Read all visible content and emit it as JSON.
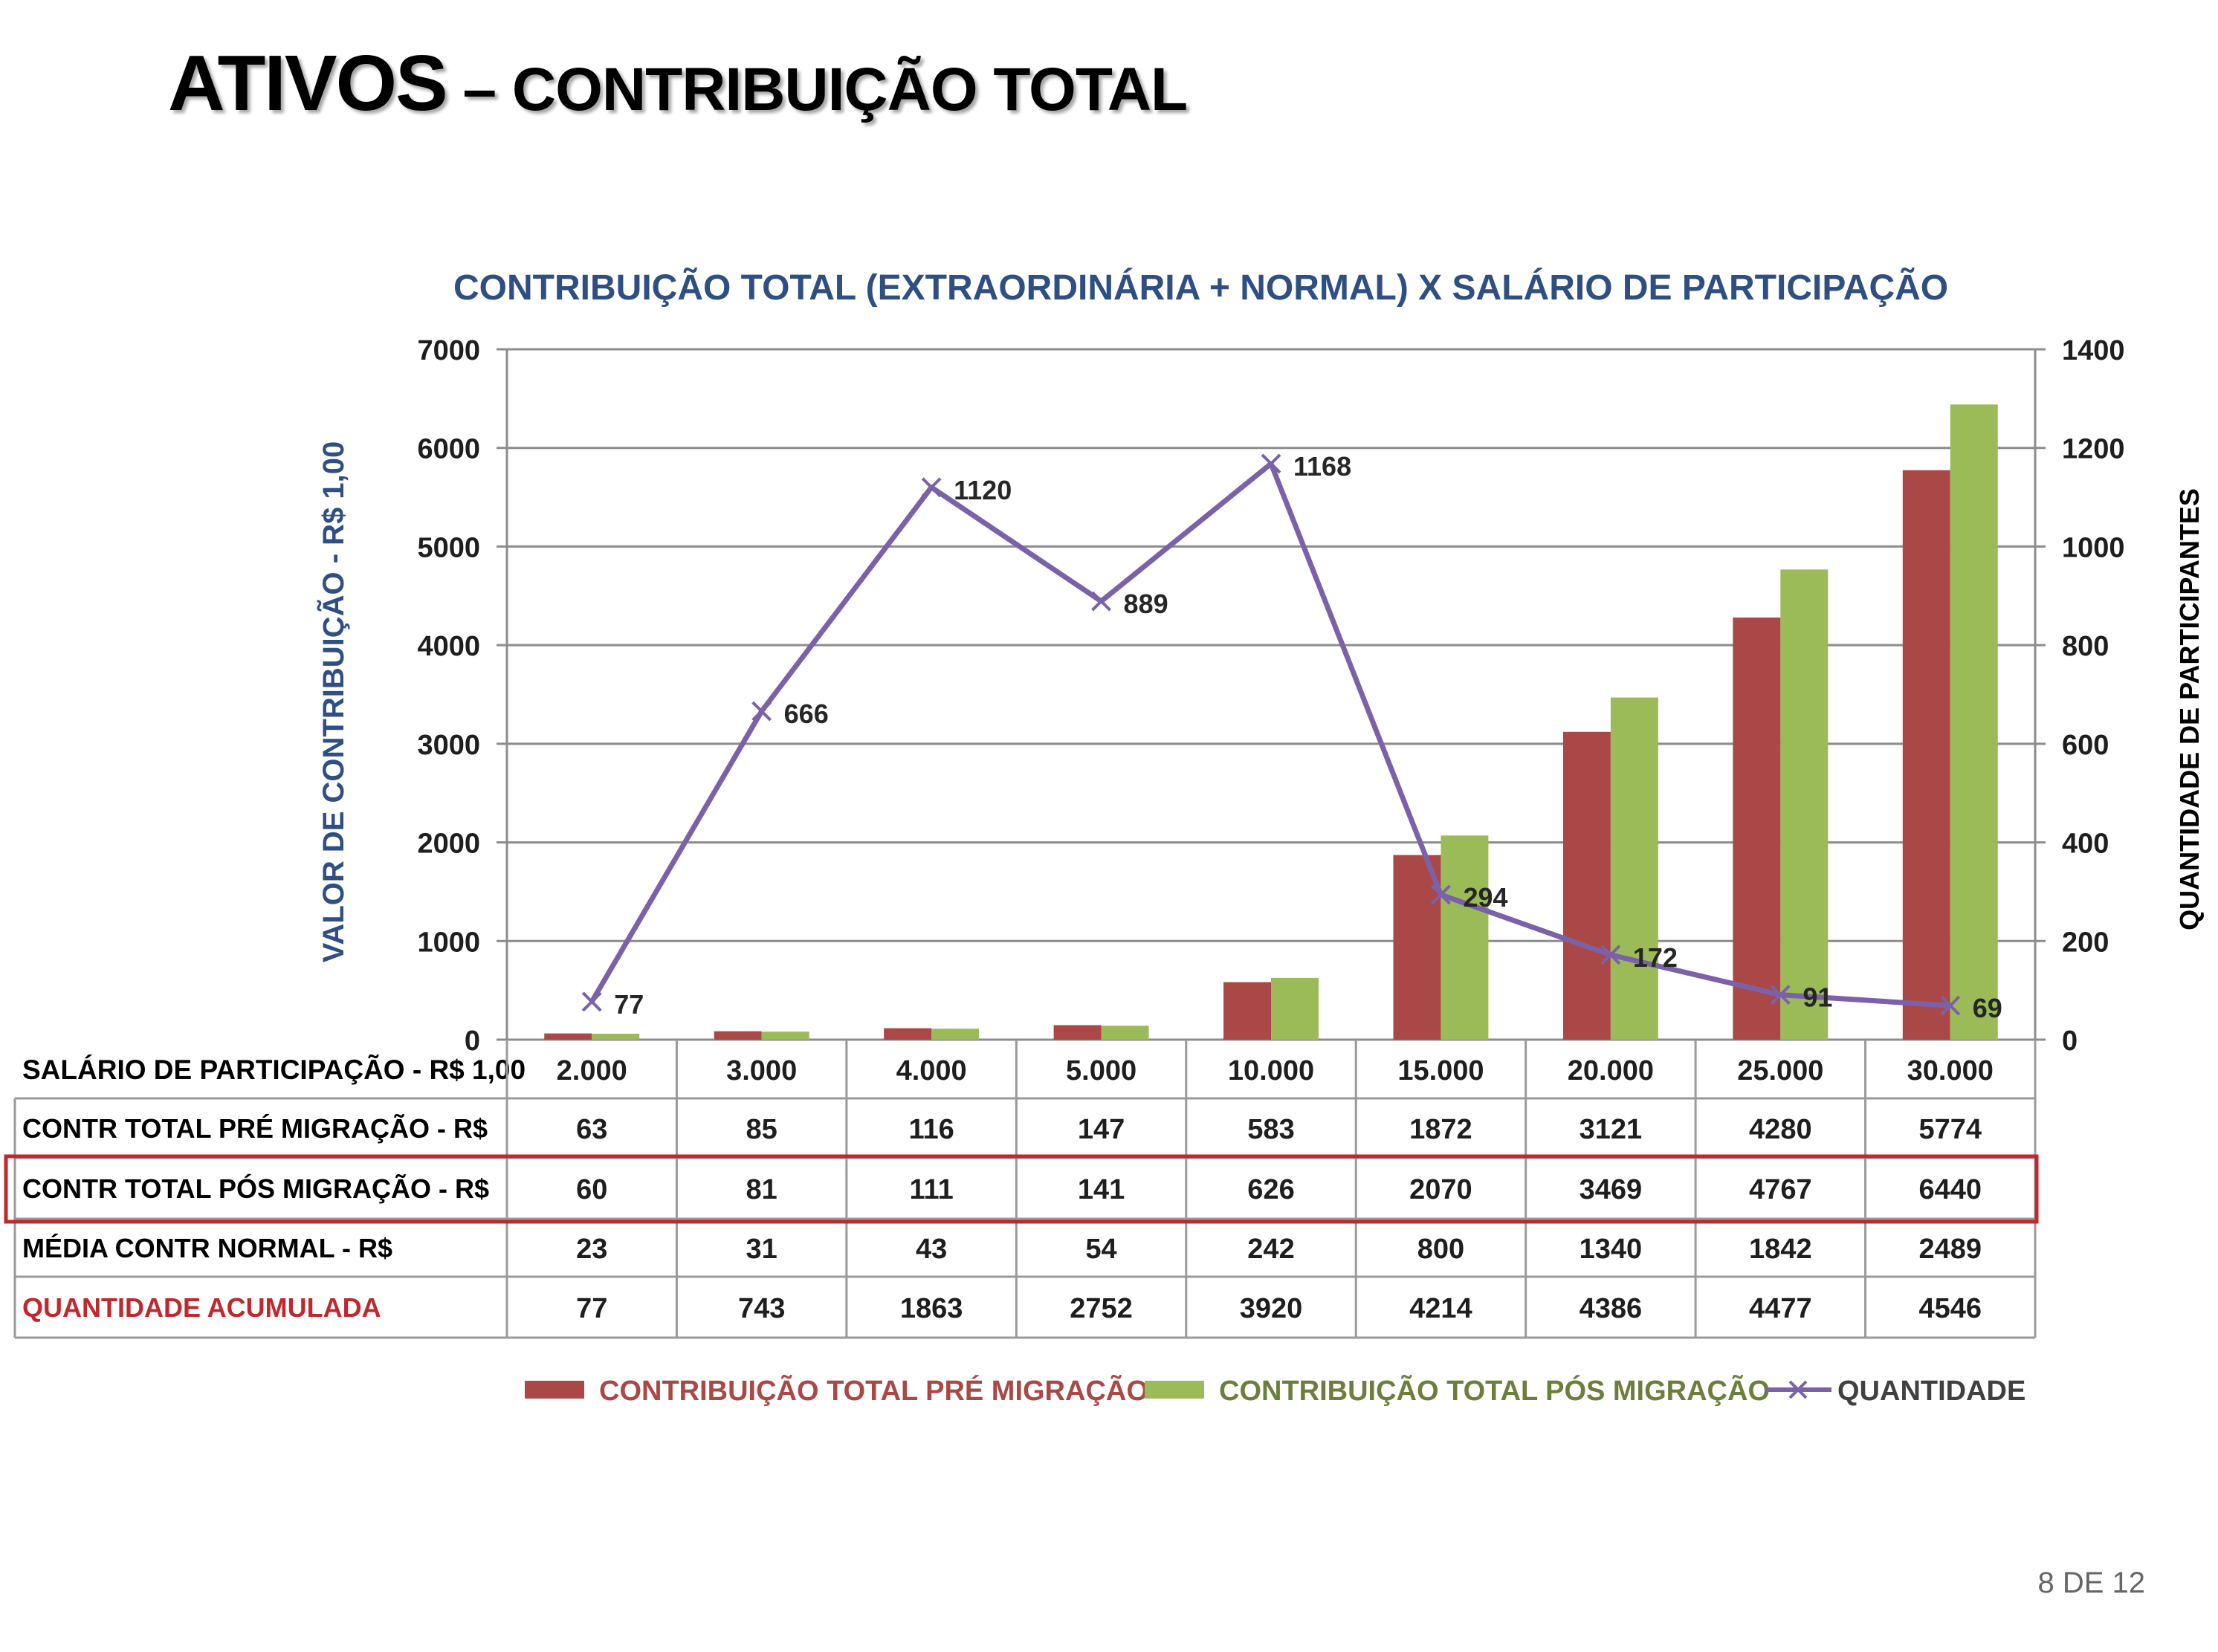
{
  "slide": {
    "title_main": "ATIVOS",
    "title_rest": " – CONTRIBUIÇÃO TOTAL",
    "page_number": "8 DE 12"
  },
  "chart_data": {
    "type": "bar",
    "title": "CONTRIBUIÇÃO TOTAL (EXTRAORDINÁRIA + NORMAL)  X SALÁRIO DE PARTICIPAÇÃO",
    "ylabel_left": "VALOR DE CONTRIBUIÇÃO - R$ 1,00",
    "ylabel_right": "QUANTIDADE DE PARTICIPANTES",
    "ylim_left": [
      0,
      7000
    ],
    "ylim_right": [
      0,
      1400
    ],
    "yticks_left": [
      "0",
      "1000",
      "2000",
      "3000",
      "4000",
      "5000",
      "6000",
      "7000"
    ],
    "yticks_right": [
      "0",
      "200",
      "400",
      "600",
      "800",
      "1000",
      "1200",
      "1400"
    ],
    "grid": true,
    "legend_position": "bottom",
    "categories": [
      "2.000",
      "3.000",
      "4.000",
      "5.000",
      "10.000",
      "15.000",
      "20.000",
      "25.000",
      "30.000"
    ],
    "series": [
      {
        "name": "CONTRIBUIÇÃO TOTAL PRÉ MIGRAÇÃO",
        "type": "bar",
        "axis": "left",
        "color": "#a94846",
        "values": [
          63,
          85,
          116,
          147,
          583,
          1872,
          3121,
          4280,
          5774
        ]
      },
      {
        "name": "CONTRIBUIÇÃO TOTAL PÓS MIGRAÇÃO",
        "type": "bar",
        "axis": "left",
        "color": "#9bbb59",
        "values": [
          60,
          81,
          111,
          141,
          626,
          2070,
          3469,
          4767,
          6440
        ]
      },
      {
        "name": "QUANTIDADE",
        "type": "line",
        "axis": "right",
        "color": "#7b62a8",
        "values": [
          77,
          666,
          1120,
          889,
          1168,
          294,
          172,
          91,
          69
        ],
        "labels": [
          "77",
          "666",
          "1120",
          "889",
          "1168",
          "294",
          "172",
          "91",
          "69"
        ]
      }
    ],
    "table": {
      "rows": [
        {
          "label": "SALÁRIO DE PARTICIPAÇÃO - R$ 1,00",
          "label_color": "#000000",
          "highlight": false,
          "values": [
            "2.000",
            "3.000",
            "4.000",
            "5.000",
            "10.000",
            "15.000",
            "20.000",
            "25.000",
            "30.000"
          ]
        },
        {
          "label": "CONTR TOTAL  PRÉ MIGRAÇÃO - R$",
          "label_color": "#000000",
          "highlight": false,
          "values": [
            "63",
            "85",
            "116",
            "147",
            "583",
            "1872",
            "3121",
            "4280",
            "5774"
          ]
        },
        {
          "label": "CONTR TOTAL PÓS  MIGRAÇÃO - R$",
          "label_color": "#000000",
          "highlight": true,
          "values": [
            "60",
            "81",
            "111",
            "141",
            "626",
            "2070",
            "3469",
            "4767",
            "6440"
          ]
        },
        {
          "label": "MÉDIA CONTR NORMAL  - R$",
          "label_color": "#000000",
          "highlight": false,
          "values": [
            "23",
            "31",
            "43",
            "54",
            "242",
            "800",
            "1340",
            "1842",
            "2489"
          ]
        },
        {
          "label": "QUANTIDADE ACUMULADA",
          "label_color": "#c0282d",
          "highlight": false,
          "values": [
            "77",
            "743",
            "1863",
            "2752",
            "3920",
            "4214",
            "4386",
            "4477",
            "4546"
          ]
        }
      ],
      "highlight_color": "#c0282d"
    }
  }
}
